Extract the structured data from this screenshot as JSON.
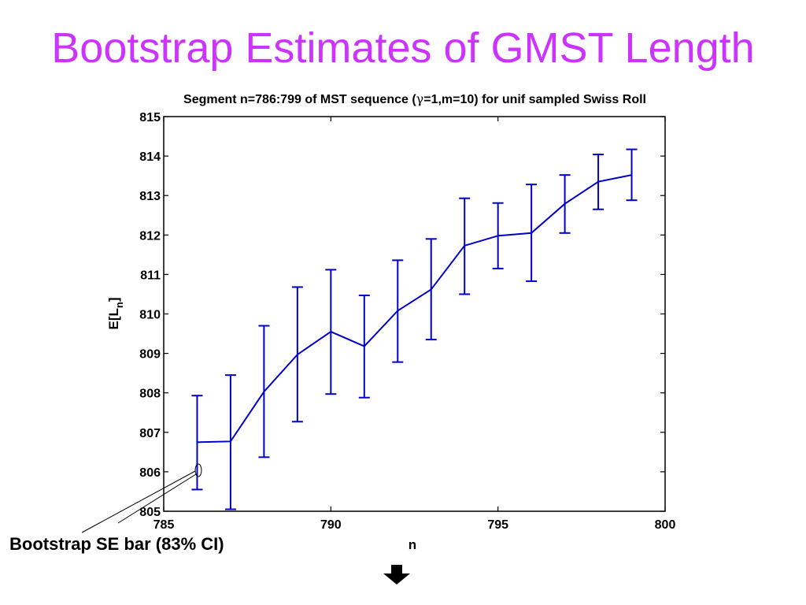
{
  "slide": {
    "title": "Bootstrap Estimates of GMST Length"
  },
  "chart_data": {
    "type": "line",
    "title_prefix": "Segment n=786:799 of MST sequence (",
    "title_symbol": "γ",
    "title_suffix": "=1,m=10) for unif sampled Swiss Roll",
    "xlabel": "n",
    "ylabel_main": "E[L",
    "ylabel_sub": "n",
    "ylabel_close": "]",
    "xlim": [
      785,
      800
    ],
    "ylim": [
      805,
      815
    ],
    "xticks": [
      785,
      790,
      795,
      800
    ],
    "yticks": [
      805,
      806,
      807,
      808,
      809,
      810,
      811,
      812,
      813,
      814,
      815
    ],
    "grid": false,
    "series": [
      {
        "color": "#0000cc",
        "x": [
          786,
          787,
          788,
          789,
          790,
          791,
          792,
          793,
          794,
          795,
          796,
          797,
          798,
          799
        ],
        "y": [
          806.75,
          806.77,
          808.03,
          808.97,
          809.55,
          809.18,
          810.08,
          810.62,
          811.73,
          811.98,
          812.05,
          812.79,
          813.35,
          813.52
        ],
        "err_low": [
          805.55,
          805.05,
          806.37,
          807.27,
          807.97,
          807.88,
          808.78,
          809.35,
          810.5,
          811.15,
          810.83,
          812.05,
          812.65,
          812.88
        ],
        "err_high": [
          807.93,
          808.45,
          809.7,
          810.68,
          811.12,
          810.47,
          811.36,
          811.9,
          812.93,
          812.81,
          813.28,
          813.52,
          814.04,
          814.17
        ]
      }
    ],
    "annotation": {
      "text": "Bootstrap SE bar (83% CI)",
      "target_x": 786,
      "target_y": 806.05
    }
  }
}
